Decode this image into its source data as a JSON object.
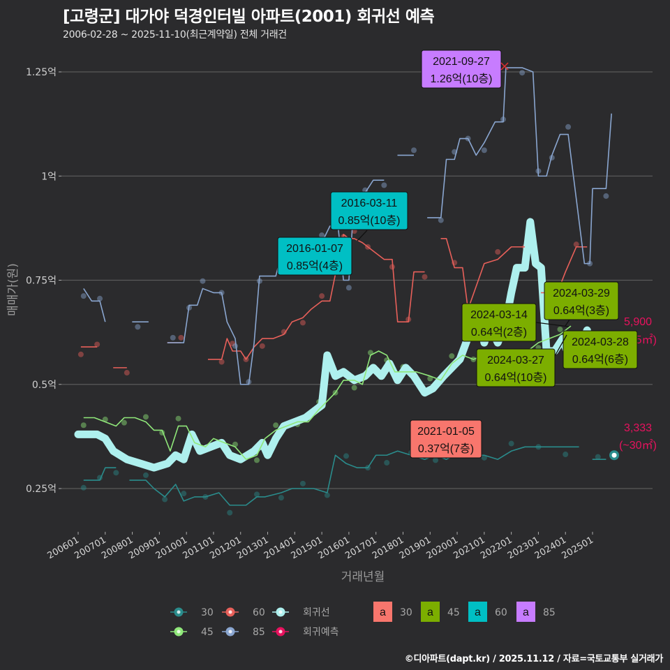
{
  "header": {
    "title": "[고령군] 대가야 덕경인터빌 아파트(2001) 회귀선 예측",
    "subtitle": "2006-02-28 ~ 2025-11-10(최근계약일) 전체 거래건"
  },
  "footer": {
    "credit": "©디아파트(dapt.kr) / 2025.11.12 / 자료=국토교통부 실거래가"
  },
  "colors": {
    "background": "#2b2b2d",
    "gridline": "#5a5a5a",
    "s30": "#2a8c8c",
    "s45": "#90e87a",
    "s60": "#e8605a",
    "s85": "#8aa6d0",
    "regression": "#aef0ee",
    "prediction": "#e8125e",
    "label30": "#f8766d",
    "label45": "#7cae00",
    "label60": "#00bfc4",
    "label85": "#c77cff"
  },
  "chart_data": {
    "type": "line",
    "title": "[고령군] 대가야 덕경인터빌 아파트(2001) 회귀선 예측",
    "subtitle": "2006-02-28 ~ 2025-11-10(최근계약일) 전체 거래건",
    "xlabel": "거래년월",
    "ylabel": "매매가(원)",
    "ylim": [
      0.16,
      1.3
    ],
    "yticks": [
      {
        "value": 0.25,
        "label": "0.25억"
      },
      {
        "value": 0.5,
        "label": "0.5억"
      },
      {
        "value": 0.75,
        "label": "0.75억"
      },
      {
        "value": 1.0,
        "label": "1억"
      },
      {
        "value": 1.25,
        "label": "1.25억"
      }
    ],
    "xticks": [
      "200601",
      "200701",
      "200801",
      "200901",
      "201001",
      "201101",
      "201201",
      "201301",
      "201401",
      "201501",
      "201601",
      "201701",
      "201801",
      "201901",
      "202001",
      "202101",
      "202201",
      "202301",
      "202401",
      "202501"
    ],
    "grid": true,
    "series": [
      {
        "name": "30",
        "unit": "억",
        "points": [
          [
            2006.2,
            0.27
          ],
          [
            2006.5,
            0.27
          ],
          [
            2006.8,
            0.27
          ],
          [
            2007.0,
            0.3
          ],
          [
            2007.4,
            0.3
          ],
          [
            2008.1,
            0.27
          ],
          [
            2008.5,
            0.27
          ],
          [
            2008.8,
            0.25
          ],
          [
            2009.2,
            0.23
          ],
          [
            2009.6,
            0.26
          ],
          [
            2009.9,
            0.22
          ],
          [
            2010.3,
            0.23
          ],
          [
            2010.7,
            0.23
          ],
          [
            2011.2,
            0.24
          ],
          [
            2011.6,
            0.21
          ],
          [
            2012.2,
            0.21
          ],
          [
            2012.6,
            0.23
          ],
          [
            2012.9,
            0.23
          ],
          [
            2013.5,
            0.24
          ],
          [
            2013.9,
            0.25
          ],
          [
            2014.3,
            0.25
          ],
          [
            2014.7,
            0.25
          ],
          [
            2015.2,
            0.24
          ],
          [
            2015.5,
            0.33
          ],
          [
            2015.9,
            0.31
          ],
          [
            2016.3,
            0.3
          ],
          [
            2016.7,
            0.3
          ],
          [
            2017.0,
            0.33
          ],
          [
            2017.4,
            0.33
          ],
          [
            2017.8,
            0.34
          ],
          [
            2018.3,
            0.33
          ],
          [
            2018.8,
            0.32
          ],
          [
            2019.2,
            0.33
          ],
          [
            2019.6,
            0.32
          ],
          [
            2020.2,
            0.34
          ],
          [
            2020.6,
            0.33
          ],
          [
            2021.0,
            0.33
          ],
          [
            2021.5,
            0.32
          ],
          [
            2022.0,
            0.34
          ],
          [
            2022.5,
            0.35
          ],
          [
            2023.0,
            0.35
          ],
          [
            2023.5,
            0.35
          ],
          [
            2024.0,
            0.35
          ],
          [
            2024.5,
            0.35
          ],
          [
            2025.2,
            0.32
          ],
          [
            2025.5,
            0.32
          ]
        ]
      },
      {
        "name": "45",
        "unit": "억",
        "points": [
          [
            2006.2,
            0.42
          ],
          [
            2006.6,
            0.42
          ],
          [
            2007.0,
            0.41
          ],
          [
            2007.4,
            0.4
          ],
          [
            2007.7,
            0.42
          ],
          [
            2008.1,
            0.42
          ],
          [
            2008.5,
            0.41
          ],
          [
            2008.8,
            0.39
          ],
          [
            2009.1,
            0.39
          ],
          [
            2009.4,
            0.34
          ],
          [
            2009.7,
            0.4
          ],
          [
            2010.0,
            0.4
          ],
          [
            2010.3,
            0.36
          ],
          [
            2010.7,
            0.35
          ],
          [
            2011.0,
            0.37
          ],
          [
            2011.4,
            0.36
          ],
          [
            2011.8,
            0.35
          ],
          [
            2012.2,
            0.32
          ],
          [
            2012.6,
            0.33
          ],
          [
            2012.9,
            0.37
          ],
          [
            2013.3,
            0.39
          ],
          [
            2013.7,
            0.4
          ],
          [
            2014.1,
            0.41
          ],
          [
            2014.5,
            0.41
          ],
          [
            2014.9,
            0.44
          ],
          [
            2015.2,
            0.46
          ],
          [
            2015.5,
            0.48
          ],
          [
            2015.8,
            0.51
          ],
          [
            2016.2,
            0.51
          ],
          [
            2016.5,
            0.5
          ],
          [
            2016.8,
            0.57
          ],
          [
            2017.1,
            0.58
          ],
          [
            2017.4,
            0.57
          ],
          [
            2017.7,
            0.53
          ],
          [
            2018.0,
            0.53
          ],
          [
            2018.5,
            0.53
          ],
          [
            2019.0,
            0.52
          ],
          [
            2019.4,
            0.51
          ],
          [
            2019.8,
            0.55
          ],
          [
            2020.2,
            0.57
          ],
          [
            2020.6,
            0.56
          ],
          [
            2021.0,
            0.57
          ],
          [
            2021.4,
            0.58
          ],
          [
            2021.8,
            0.57
          ],
          [
            2022.2,
            0.57
          ],
          [
            2022.6,
            0.58
          ],
          [
            2023.0,
            0.6
          ],
          [
            2023.4,
            0.61
          ],
          [
            2023.8,
            0.62
          ],
          [
            2024.2,
            0.64
          ]
        ]
      },
      {
        "name": "60",
        "unit": "억",
        "points": [
          [
            2006.1,
            0.59
          ],
          [
            2006.4,
            0.59
          ],
          [
            2006.7,
            0.59
          ],
          [
            2007.5,
            0.54
          ],
          [
            2007.8,
            0.54
          ],
          [
            2009.5,
            0.6
          ],
          [
            2009.8,
            0.6
          ],
          [
            2011.0,
            0.56
          ],
          [
            2011.3,
            0.56
          ],
          [
            2011.5,
            0.61
          ],
          [
            2011.7,
            0.58
          ],
          [
            2012.0,
            0.58
          ],
          [
            2012.2,
            0.56
          ],
          [
            2012.5,
            0.59
          ],
          [
            2012.8,
            0.61
          ],
          [
            2013.2,
            0.61
          ],
          [
            2013.6,
            0.62
          ],
          [
            2013.9,
            0.65
          ],
          [
            2014.3,
            0.66
          ],
          [
            2014.6,
            0.68
          ],
          [
            2015.0,
            0.7
          ],
          [
            2015.3,
            0.7
          ],
          [
            2015.8,
            0.86
          ],
          [
            2016.0,
            0.85
          ],
          [
            2016.2,
            0.85
          ],
          [
            2016.5,
            0.84
          ],
          [
            2016.7,
            0.83
          ],
          [
            2017.3,
            0.8
          ],
          [
            2017.6,
            0.8
          ],
          [
            2017.8,
            0.65
          ],
          [
            2018.2,
            0.65
          ],
          [
            2018.4,
            0.77
          ],
          [
            2018.8,
            0.77
          ],
          [
            2019.6,
            0.85
          ],
          [
            2019.9,
            0.78
          ],
          [
            2020.2,
            0.78
          ],
          [
            2020.4,
            0.68
          ],
          [
            2021.0,
            0.79
          ],
          [
            2021.5,
            0.8
          ],
          [
            2022.0,
            0.83
          ],
          [
            2022.5,
            0.83
          ],
          [
            2023.3,
            0.72
          ],
          [
            2023.7,
            0.72
          ],
          [
            2024.0,
            0.77
          ],
          [
            2024.4,
            0.83
          ],
          [
            2024.8,
            0.83
          ]
        ]
      },
      {
        "name": "85",
        "unit": "억",
        "points": [
          [
            2006.2,
            0.73
          ],
          [
            2006.5,
            0.7
          ],
          [
            2006.8,
            0.7
          ],
          [
            2007.0,
            0.65
          ],
          [
            2008.2,
            0.65
          ],
          [
            2008.6,
            0.65
          ],
          [
            2009.5,
            0.6
          ],
          [
            2009.9,
            0.6
          ],
          [
            2010.1,
            0.69
          ],
          [
            2010.4,
            0.69
          ],
          [
            2010.6,
            0.73
          ],
          [
            2011.0,
            0.72
          ],
          [
            2011.3,
            0.72
          ],
          [
            2011.5,
            0.65
          ],
          [
            2011.8,
            0.61
          ],
          [
            2012.0,
            0.5
          ],
          [
            2012.3,
            0.5
          ],
          [
            2012.5,
            0.6
          ],
          [
            2012.7,
            0.76
          ],
          [
            2013.3,
            0.76
          ],
          [
            2013.5,
            0.81
          ],
          [
            2013.9,
            0.81
          ],
          [
            2014.2,
            0.83
          ],
          [
            2014.6,
            0.84
          ],
          [
            2015.0,
            0.84
          ],
          [
            2015.3,
            0.88
          ],
          [
            2015.6,
            0.88
          ],
          [
            2015.8,
            0.75
          ],
          [
            2016.0,
            0.75
          ],
          [
            2016.2,
            0.95
          ],
          [
            2016.6,
            0.96
          ],
          [
            2016.9,
            0.99
          ],
          [
            2017.3,
            0.99
          ],
          [
            2018.0,
            1.05
          ],
          [
            2018.4,
            1.05
          ],
          [
            2019.1,
            0.9
          ],
          [
            2019.4,
            0.9
          ],
          [
            2019.6,
            1.04
          ],
          [
            2019.9,
            1.04
          ],
          [
            2020.1,
            1.09
          ],
          [
            2020.4,
            1.09
          ],
          [
            2020.7,
            1.05
          ],
          [
            2021.0,
            1.08
          ],
          [
            2021.4,
            1.13
          ],
          [
            2021.7,
            1.13
          ],
          [
            2021.8,
            1.26
          ],
          [
            2022.4,
            1.26
          ],
          [
            2022.8,
            1.25
          ],
          [
            2023.0,
            1.0
          ],
          [
            2023.3,
            1.0
          ],
          [
            2023.5,
            1.05
          ],
          [
            2023.8,
            1.1
          ],
          [
            2024.1,
            1.1
          ],
          [
            2024.7,
            0.79
          ],
          [
            2024.9,
            0.79
          ],
          [
            2025.0,
            0.97
          ],
          [
            2025.5,
            0.97
          ],
          [
            2025.7,
            1.15
          ]
        ]
      },
      {
        "name": "회귀선",
        "unit": "억",
        "points": [
          [
            2006.0,
            0.38
          ],
          [
            2006.7,
            0.38
          ],
          [
            2007.0,
            0.37
          ],
          [
            2007.3,
            0.34
          ],
          [
            2007.8,
            0.32
          ],
          [
            2008.3,
            0.31
          ],
          [
            2008.8,
            0.3
          ],
          [
            2009.3,
            0.31
          ],
          [
            2009.6,
            0.33
          ],
          [
            2009.9,
            0.32
          ],
          [
            2010.2,
            0.38
          ],
          [
            2010.5,
            0.34
          ],
          [
            2010.9,
            0.35
          ],
          [
            2011.3,
            0.36
          ],
          [
            2011.6,
            0.33
          ],
          [
            2012.0,
            0.32
          ],
          [
            2012.5,
            0.34
          ],
          [
            2012.8,
            0.36
          ],
          [
            2013.0,
            0.33
          ],
          [
            2013.3,
            0.37
          ],
          [
            2013.6,
            0.4
          ],
          [
            2014.0,
            0.41
          ],
          [
            2014.4,
            0.42
          ],
          [
            2014.8,
            0.44
          ],
          [
            2015.0,
            0.45
          ],
          [
            2015.2,
            0.57
          ],
          [
            2015.5,
            0.52
          ],
          [
            2015.8,
            0.53
          ],
          [
            2016.2,
            0.51
          ],
          [
            2016.6,
            0.52
          ],
          [
            2016.9,
            0.54
          ],
          [
            2017.2,
            0.52
          ],
          [
            2017.5,
            0.55
          ],
          [
            2017.8,
            0.51
          ],
          [
            2018.1,
            0.54
          ],
          [
            2018.4,
            0.52
          ],
          [
            2018.8,
            0.48
          ],
          [
            2019.1,
            0.49
          ],
          [
            2019.5,
            0.52
          ],
          [
            2019.8,
            0.54
          ],
          [
            2020.1,
            0.56
          ],
          [
            2020.5,
            0.63
          ],
          [
            2020.8,
            0.67
          ],
          [
            2021.0,
            0.6
          ],
          [
            2021.2,
            0.64
          ],
          [
            2021.5,
            0.6
          ],
          [
            2021.8,
            0.65
          ],
          [
            2022.0,
            0.72
          ],
          [
            2022.2,
            0.78
          ],
          [
            2022.5,
            0.78
          ],
          [
            2022.7,
            0.89
          ],
          [
            2022.9,
            0.79
          ],
          [
            2023.1,
            0.78
          ],
          [
            2023.3,
            0.58
          ],
          [
            2023.6,
            0.58
          ],
          [
            2023.9,
            0.61
          ],
          [
            2024.2,
            0.55
          ],
          [
            2024.5,
            0.58
          ],
          [
            2024.8,
            0.63
          ]
        ]
      },
      {
        "name": "회귀예측",
        "unit": "억",
        "points": [
          [
            2025.8,
            0.33
          ]
        ]
      }
    ],
    "annotations": [
      {
        "date": "2021-09-27",
        "value": "1.26억(10층)",
        "type": "85"
      },
      {
        "date": "2016-03-11",
        "value": "0.85억(10층)",
        "type": "60"
      },
      {
        "date": "2016-01-07",
        "value": "0.85억(4층)",
        "type": "60"
      },
      {
        "date": "2024-03-29",
        "value": "0.64억(3층)",
        "type": "45"
      },
      {
        "date": "2024-03-14",
        "value": "0.64억(2층)",
        "type": "45"
      },
      {
        "date": "2024-03-28",
        "value": "0.64억(6층)",
        "type": "45"
      },
      {
        "date": "2024-03-27",
        "value": "0.64억(10층)",
        "type": "45"
      },
      {
        "date": "2021-01-05",
        "value": "0.37억(7층)",
        "type": "30"
      }
    ],
    "predictions": [
      {
        "line1": "5,900",
        "line2": "(~85㎡)"
      },
      {
        "line1": "3,333",
        "line2": "(~30㎡)"
      }
    ],
    "legend_position": "bottom"
  },
  "legend": {
    "lines": [
      {
        "key": "30",
        "label": "30"
      },
      {
        "key": "60",
        "label": "60"
      },
      {
        "key": "reg",
        "label": "회귀선"
      },
      {
        "key": "45",
        "label": "45"
      },
      {
        "key": "85",
        "label": "85"
      },
      {
        "key": "pred",
        "label": "회귀예측"
      }
    ],
    "label_boxes": [
      {
        "glyph": "a",
        "label": "30"
      },
      {
        "glyph": "a",
        "label": "45"
      },
      {
        "glyph": "a",
        "label": "60"
      },
      {
        "glyph": "a",
        "label": "85"
      }
    ]
  }
}
